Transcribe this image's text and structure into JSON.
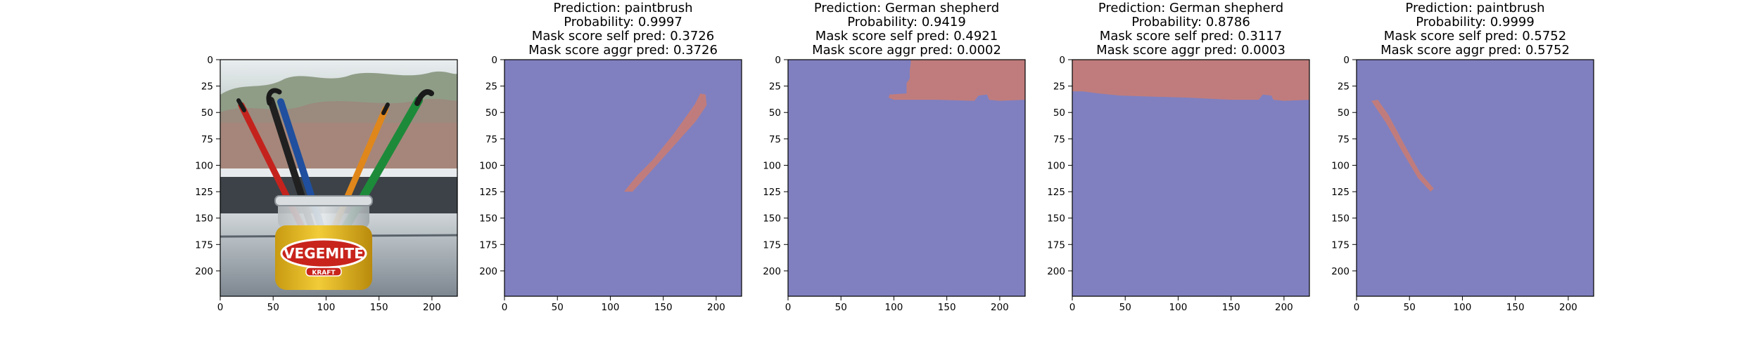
{
  "figure": {
    "background": "#ffffff"
  },
  "chart_data": [
    {
      "type": "image",
      "content": "photo of paintbrushes in a Vegemite jar on a windowsill",
      "title_lines": [],
      "xlim": [
        0,
        224
      ],
      "ylim": [
        224,
        0
      ],
      "xticks": [
        0,
        50,
        100,
        150,
        200
      ],
      "yticks": [
        0,
        25,
        50,
        75,
        100,
        125,
        150,
        175,
        200
      ],
      "jar_label_text": "VEGEMITE",
      "jar_brand_text": "KRAFT"
    },
    {
      "type": "heatmap",
      "prediction": "paintbrush",
      "probability": "0.9997",
      "mask_score_self_pred": "0.3726",
      "mask_score_aggr_pred": "0.3726",
      "title_lines": [
        "Prediction: paintbrush",
        "Probability: 0.9997",
        "Mask score self pred: 0.3726",
        "Mask score aggr pred: 0.3726"
      ],
      "xlim": [
        0,
        224
      ],
      "ylim": [
        224,
        0
      ],
      "xticks": [
        0,
        50,
        100,
        150,
        200
      ],
      "yticks": [
        0,
        25,
        50,
        75,
        100,
        125,
        150,
        175,
        200
      ],
      "background_color": "#8080c0",
      "mask_color": "#c07c7c",
      "mask_polygon": [
        [
          113,
          125
        ],
        [
          121,
          125
        ],
        [
          157,
          85
        ],
        [
          181,
          58
        ],
        [
          191,
          43
        ],
        [
          190,
          33
        ],
        [
          185,
          32
        ],
        [
          180,
          42
        ],
        [
          160,
          70
        ],
        [
          140,
          95
        ],
        [
          125,
          110
        ]
      ]
    },
    {
      "type": "heatmap",
      "prediction": "German shepherd",
      "probability": "0.9419",
      "mask_score_self_pred": "0.4921",
      "mask_score_aggr_pred": "0.0002",
      "title_lines": [
        "Prediction: German shepherd",
        "Probability: 0.9419",
        "Mask score self pred: 0.4921",
        "Mask score aggr pred: 0.0002"
      ],
      "xlim": [
        0,
        224
      ],
      "ylim": [
        224,
        0
      ],
      "xticks": [
        0,
        50,
        100,
        150,
        200
      ],
      "yticks": [
        0,
        25,
        50,
        75,
        100,
        125,
        150,
        175,
        200
      ],
      "background_color": "#8080c0",
      "mask_color": "#c07c7c",
      "mask_polygon": [
        [
          116,
          0
        ],
        [
          224,
          0
        ],
        [
          224,
          38
        ],
        [
          200,
          39
        ],
        [
          190,
          38
        ],
        [
          188,
          33
        ],
        [
          180,
          34
        ],
        [
          176,
          39
        ],
        [
          140,
          38
        ],
        [
          100,
          38
        ],
        [
          95,
          36
        ],
        [
          96,
          33
        ],
        [
          112,
          32
        ],
        [
          112,
          22
        ],
        [
          115,
          18
        ],
        [
          115,
          10
        ],
        [
          116,
          3
        ]
      ]
    },
    {
      "type": "heatmap",
      "prediction": "German shepherd",
      "probability": "0.8786",
      "mask_score_self_pred": "0.3117",
      "mask_score_aggr_pred": "0.0003",
      "title_lines": [
        "Prediction: German shepherd",
        "Probability: 0.8786",
        "Mask score self pred: 0.3117",
        "Mask score aggr pred: 0.0003"
      ],
      "xlim": [
        0,
        224
      ],
      "ylim": [
        224,
        0
      ],
      "xticks": [
        0,
        50,
        100,
        150,
        200
      ],
      "yticks": [
        0,
        25,
        50,
        75,
        100,
        125,
        150,
        175,
        200
      ],
      "background_color": "#8080c0",
      "mask_color": "#c07c7c",
      "mask_polygon": [
        [
          0,
          0
        ],
        [
          224,
          0
        ],
        [
          224,
          38
        ],
        [
          200,
          39
        ],
        [
          190,
          38
        ],
        [
          188,
          34
        ],
        [
          180,
          33
        ],
        [
          176,
          38
        ],
        [
          150,
          38
        ],
        [
          110,
          36
        ],
        [
          75,
          35
        ],
        [
          45,
          34
        ],
        [
          25,
          32
        ],
        [
          10,
          30
        ],
        [
          0,
          30
        ]
      ]
    },
    {
      "type": "heatmap",
      "prediction": "paintbrush",
      "probability": "0.9999",
      "mask_score_self_pred": "0.5752",
      "mask_score_aggr_pred": "0.5752",
      "title_lines": [
        "Prediction: paintbrush",
        "Probability: 0.9999",
        "Mask score self pred: 0.5752",
        "Mask score aggr pred: 0.5752"
      ],
      "xlim": [
        0,
        224
      ],
      "ylim": [
        224,
        0
      ],
      "xticks": [
        0,
        50,
        100,
        150,
        200
      ],
      "yticks": [
        0,
        25,
        50,
        75,
        100,
        125,
        150,
        175,
        200
      ],
      "background_color": "#8080c0",
      "mask_color": "#c07c7c",
      "mask_polygon": [
        [
          14,
          39
        ],
        [
          20,
          38
        ],
        [
          30,
          52
        ],
        [
          45,
          80
        ],
        [
          60,
          107
        ],
        [
          73,
          122
        ],
        [
          70,
          125
        ],
        [
          58,
          112
        ],
        [
          42,
          85
        ],
        [
          28,
          60
        ],
        [
          18,
          45
        ]
      ]
    }
  ]
}
